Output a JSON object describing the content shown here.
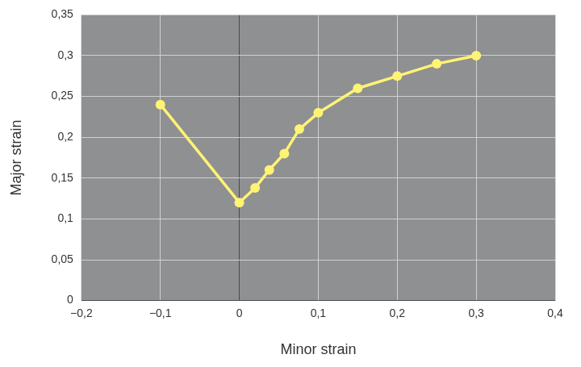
{
  "chart_data": {
    "type": "line",
    "x_label": "Minor strain",
    "y_label": "Major strain",
    "x": [
      -0.1,
      0,
      0.02,
      0.038,
      0.057,
      0.076,
      0.1,
      0.15,
      0.2,
      0.25,
      0.3
    ],
    "values": [
      0.24,
      0.12,
      0.138,
      0.16,
      0.18,
      0.21,
      0.23,
      0.26,
      0.275,
      0.29,
      0.3
    ],
    "color": "#fff374",
    "marker": "circle",
    "xlim": [
      -0.2,
      0.4
    ],
    "xticks": [
      {
        "value": -0.2,
        "label": "−0,2"
      },
      {
        "value": -0.1,
        "label": "−0,1"
      },
      0,
      {
        "value": 0.1,
        "label": "0,1"
      },
      {
        "value": 0.2,
        "label": "0,2"
      },
      {
        "value": 0.3,
        "label": "0,3"
      },
      {
        "value": 0.4,
        "label": "0,4"
      }
    ],
    "ylim": [
      0,
      0.35
    ],
    "yticks": [
      0,
      {
        "value": 0.05,
        "label": "0,05"
      },
      {
        "value": 0.1,
        "label": "0,1"
      },
      {
        "value": 0.15,
        "label": "0,15"
      },
      {
        "value": 0.2,
        "label": "0,2"
      },
      {
        "value": 0.25,
        "label": "0,25"
      },
      {
        "value": 0.3,
        "label": "0,3"
      },
      {
        "value": 0.35,
        "label": "0,35"
      }
    ],
    "grid": true
  }
}
